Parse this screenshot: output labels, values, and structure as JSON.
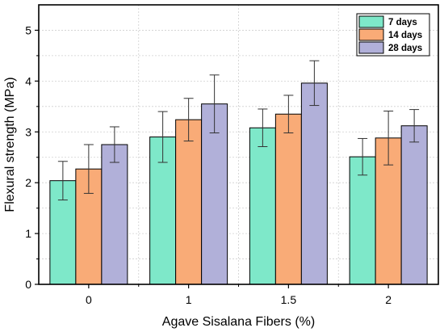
{
  "chart_data": {
    "type": "bar",
    "title": "",
    "xlabel": "Agave Sisalana Fibers (%)",
    "ylabel": "Flexural strength (MPa)",
    "categories": [
      "0",
      "1",
      "1.5",
      "2"
    ],
    "ylim": [
      0,
      5.5
    ],
    "yticks": [
      0,
      1,
      2,
      3,
      4,
      5
    ],
    "grid": true,
    "legend_position": "top-right",
    "series": [
      {
        "name": "7 days",
        "color": "#7ee8c9",
        "values": [
          2.04,
          2.9,
          3.08,
          2.51
        ],
        "errors": [
          0.38,
          0.5,
          0.37,
          0.36
        ]
      },
      {
        "name": "14 days",
        "color": "#f9ab77",
        "values": [
          2.27,
          3.24,
          3.35,
          2.88
        ],
        "errors": [
          0.48,
          0.42,
          0.37,
          0.53
        ]
      },
      {
        "name": "28 days",
        "color": "#b1b0d9",
        "values": [
          2.75,
          3.55,
          3.96,
          3.12
        ],
        "errors": [
          0.35,
          0.57,
          0.44,
          0.32
        ]
      }
    ]
  }
}
